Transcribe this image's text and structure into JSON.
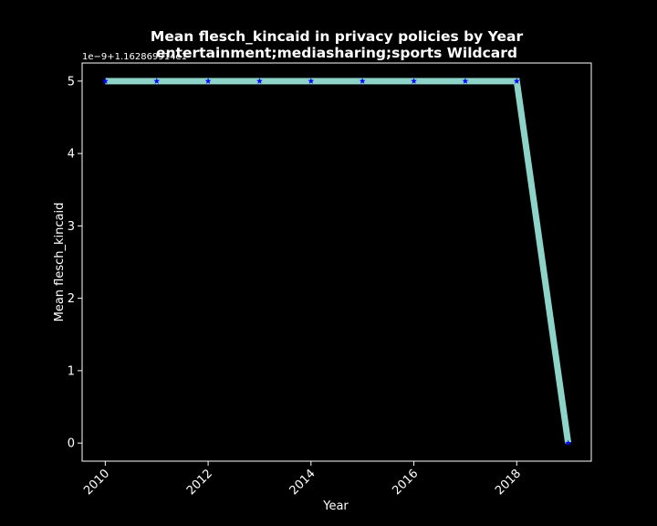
{
  "chart_data": {
    "type": "line",
    "title_line1": "Mean flesch_kincaid in privacy policies by Year",
    "title_line2": "entertainment;mediasharing;sports Wildcard",
    "xlabel": "Year",
    "ylabel": "Mean flesch_kincaid",
    "y_offset_label": "1e−9+1.162869914e1",
    "x": [
      2010,
      2011,
      2012,
      2013,
      2014,
      2015,
      2016,
      2017,
      2018,
      2019
    ],
    "values": [
      5,
      5,
      5,
      5,
      5,
      5,
      5,
      5,
      5,
      0
    ],
    "xlim": [
      2009.55,
      2019.45
    ],
    "ylim": [
      -0.25,
      5.25
    ],
    "x_ticks": [
      2010,
      2012,
      2014,
      2016,
      2018
    ],
    "x_tick_labels": [
      "2010",
      "2012",
      "2014",
      "2016",
      "2018"
    ],
    "y_ticks": [
      0,
      1,
      2,
      3,
      4,
      5
    ],
    "y_tick_labels": [
      "0",
      "1",
      "2",
      "3",
      "4",
      "5"
    ],
    "grid": false,
    "line_color": "#8dd3c7",
    "marker": "star",
    "marker_color": "#0000ff",
    "background": "#000000",
    "foreground": "#ffffff"
  }
}
